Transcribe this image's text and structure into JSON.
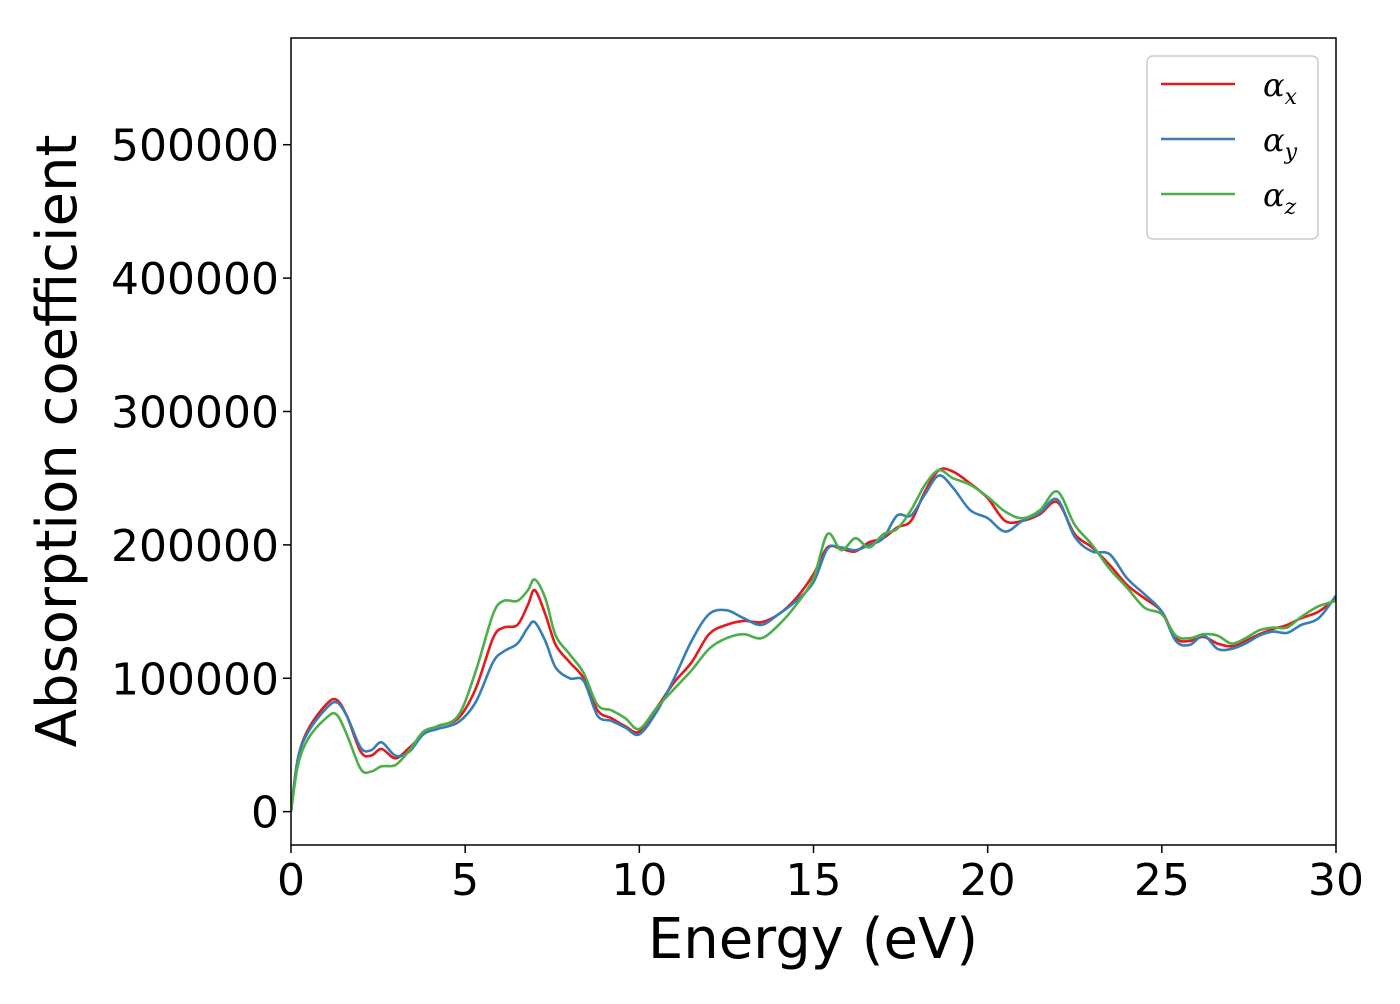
{
  "chart_data": {
    "type": "line",
    "title": "",
    "xlabel": "Energy (eV)",
    "ylabel": "Absorption coefficient",
    "xlim": [
      0,
      30
    ],
    "ylim": [
      -25000,
      580000
    ],
    "xticks": [
      0,
      5,
      10,
      15,
      20,
      25,
      30
    ],
    "yticks": [
      0,
      100000,
      200000,
      300000,
      400000,
      500000
    ],
    "grid": false,
    "legend_position": "top-right",
    "series": [
      {
        "name": "αx",
        "legend_symbol": "α",
        "legend_subscript": "x",
        "color": "#e41a1c",
        "x": [
          0,
          0.2,
          0.5,
          1.0,
          1.3,
          1.6,
          2.0,
          2.3,
          2.6,
          3.0,
          3.4,
          3.8,
          4.2,
          4.8,
          5.3,
          5.8,
          6.1,
          6.5,
          6.8,
          7.0,
          7.3,
          7.6,
          8.0,
          8.4,
          8.8,
          9.2,
          9.6,
          10.0,
          10.5,
          11.0,
          11.5,
          12.0,
          12.5,
          13.0,
          13.5,
          14.0,
          14.5,
          15.0,
          15.4,
          15.8,
          16.2,
          16.6,
          17.0,
          17.4,
          17.8,
          18.2,
          18.6,
          19.0,
          19.5,
          20.0,
          20.5,
          21.0,
          21.5,
          22.0,
          22.5,
          23.0,
          23.5,
          24.0,
          24.5,
          25.0,
          25.4,
          25.8,
          26.2,
          26.6,
          27.0,
          27.4,
          27.8,
          28.2,
          28.6,
          29.0,
          29.5,
          30.0
        ],
        "values": [
          0,
          40000,
          62000,
          80000,
          84000,
          72000,
          45000,
          42000,
          47000,
          40000,
          48000,
          58000,
          64000,
          70000,
          92000,
          130000,
          138000,
          140000,
          155000,
          166000,
          148000,
          125000,
          112000,
          100000,
          76000,
          70000,
          64000,
          60000,
          78000,
          97000,
          112000,
          133000,
          140000,
          143000,
          142000,
          148000,
          160000,
          178000,
          198000,
          197000,
          195000,
          202000,
          205000,
          213000,
          218000,
          240000,
          256000,
          255000,
          246000,
          235000,
          218000,
          218000,
          223000,
          232000,
          208000,
          198000,
          185000,
          170000,
          160000,
          150000,
          130000,
          128000,
          131000,
          126000,
          124000,
          128000,
          133000,
          137000,
          140000,
          145000,
          150000,
          160000
        ]
      },
      {
        "name": "αy",
        "legend_symbol": "α",
        "legend_subscript": "y",
        "color": "#377eb8",
        "x": [
          0,
          0.2,
          0.5,
          1.0,
          1.3,
          1.6,
          2.0,
          2.3,
          2.6,
          3.0,
          3.4,
          3.8,
          4.2,
          4.8,
          5.3,
          5.8,
          6.1,
          6.5,
          6.8,
          7.0,
          7.3,
          7.6,
          8.0,
          8.4,
          8.8,
          9.2,
          9.6,
          10.0,
          10.5,
          11.0,
          11.5,
          12.0,
          12.5,
          13.0,
          13.5,
          14.0,
          14.5,
          15.0,
          15.4,
          15.8,
          16.2,
          16.6,
          17.0,
          17.4,
          17.8,
          18.2,
          18.6,
          19.0,
          19.5,
          20.0,
          20.5,
          21.0,
          21.5,
          22.0,
          22.5,
          23.0,
          23.5,
          24.0,
          24.5,
          25.0,
          25.4,
          25.8,
          26.2,
          26.6,
          27.0,
          27.4,
          27.8,
          28.2,
          28.6,
          29.0,
          29.5,
          30.0
        ],
        "values": [
          0,
          40000,
          60000,
          77000,
          82000,
          72000,
          48000,
          46000,
          52000,
          42000,
          45000,
          58000,
          62000,
          67000,
          82000,
          112000,
          120000,
          126000,
          138000,
          142000,
          128000,
          108000,
          100000,
          98000,
          72000,
          68000,
          63000,
          58000,
          75000,
          100000,
          128000,
          148000,
          151000,
          145000,
          140000,
          148000,
          158000,
          172000,
          197000,
          198000,
          196000,
          200000,
          205000,
          222000,
          222000,
          238000,
          252000,
          243000,
          226000,
          220000,
          210000,
          218000,
          224000,
          234000,
          206000,
          195000,
          193000,
          175000,
          163000,
          150000,
          128000,
          125000,
          132000,
          122000,
          122000,
          126000,
          132000,
          135000,
          134000,
          140000,
          145000,
          162000
        ]
      },
      {
        "name": "αz",
        "legend_symbol": "α",
        "legend_subscript": "z",
        "color": "#4daf4a",
        "x": [
          0,
          0.2,
          0.5,
          1.0,
          1.3,
          1.6,
          2.0,
          2.3,
          2.6,
          3.0,
          3.4,
          3.8,
          4.2,
          4.8,
          5.3,
          5.8,
          6.1,
          6.5,
          6.8,
          7.0,
          7.3,
          7.6,
          8.0,
          8.4,
          8.8,
          9.2,
          9.6,
          10.0,
          10.5,
          11.0,
          11.5,
          12.0,
          12.5,
          13.0,
          13.5,
          14.0,
          14.5,
          15.0,
          15.4,
          15.8,
          16.2,
          16.6,
          17.0,
          17.4,
          17.8,
          18.2,
          18.6,
          19.0,
          19.5,
          20.0,
          20.5,
          21.0,
          21.5,
          22.0,
          22.5,
          23.0,
          23.5,
          24.0,
          24.5,
          25.0,
          25.4,
          25.8,
          26.2,
          26.6,
          27.0,
          27.4,
          27.8,
          28.2,
          28.6,
          29.0,
          29.5,
          30.0
        ],
        "values": [
          0,
          35000,
          55000,
          70000,
          73000,
          58000,
          32000,
          30000,
          34000,
          35000,
          46000,
          60000,
          64000,
          72000,
          105000,
          148000,
          158000,
          158000,
          166000,
          174000,
          160000,
          132000,
          118000,
          104000,
          80000,
          76000,
          70000,
          62000,
          78000,
          92000,
          106000,
          122000,
          130000,
          133000,
          130000,
          140000,
          155000,
          175000,
          208000,
          196000,
          205000,
          198000,
          208000,
          212000,
          226000,
          245000,
          256000,
          250000,
          245000,
          236000,
          225000,
          220000,
          226000,
          240000,
          215000,
          200000,
          182000,
          168000,
          153000,
          148000,
          132000,
          130000,
          133000,
          132000,
          126000,
          130000,
          136000,
          138000,
          138000,
          146000,
          154000,
          158000
        ]
      }
    ]
  }
}
